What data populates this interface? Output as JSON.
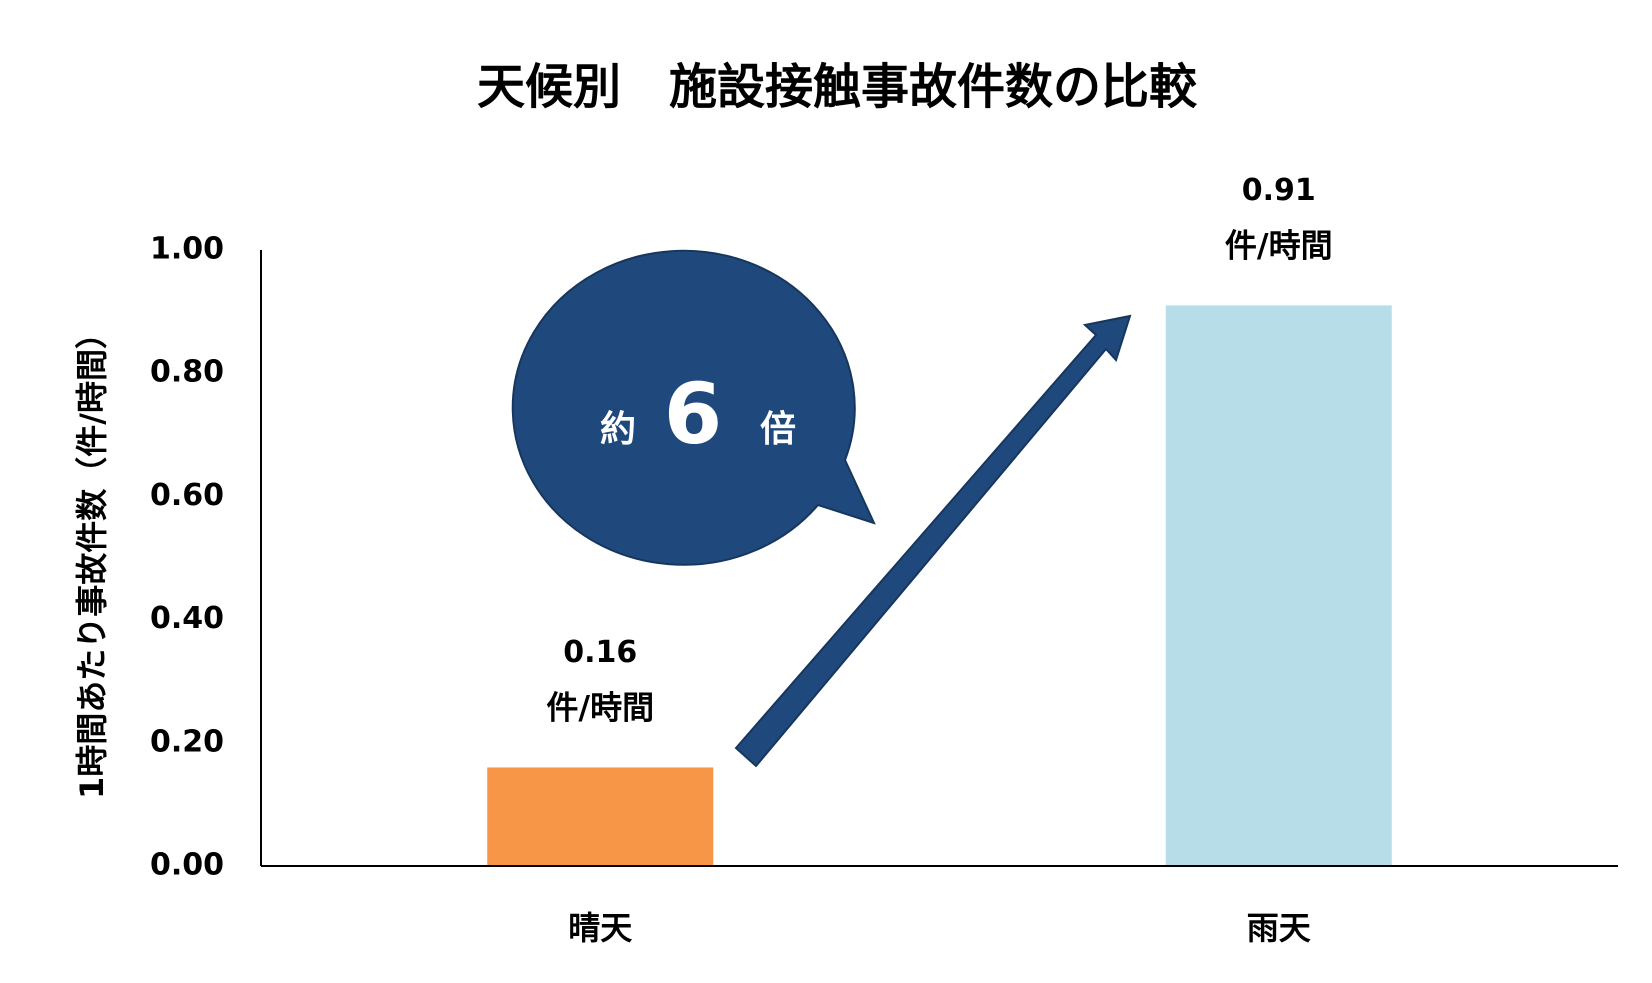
{
  "chart_data": {
    "type": "bar",
    "title": "天候別　施設接触事故件数の比較",
    "y_label": "1時間あたり事故件数（件/時間）",
    "categories": [
      "晴天",
      "雨天"
    ],
    "values": [
      0.16,
      0.91
    ],
    "value_labels": [
      "0.16",
      "0.91"
    ],
    "value_unit": "件/時間",
    "colors": [
      "#f79646",
      "#b7dde8"
    ],
    "ylim": [
      0,
      1
    ],
    "yticks": [
      {
        "value": 0,
        "label": "0.00"
      },
      {
        "value": 0.2,
        "label": "0.20"
      },
      {
        "value": 0.4,
        "label": "0.40"
      },
      {
        "value": 0.6,
        "label": "0.60"
      },
      {
        "value": 0.8,
        "label": "0.80"
      },
      {
        "value": 1,
        "label": "1.00"
      }
    ],
    "grid": false,
    "annotation": [
      "約",
      "6",
      "倍"
    ]
  }
}
